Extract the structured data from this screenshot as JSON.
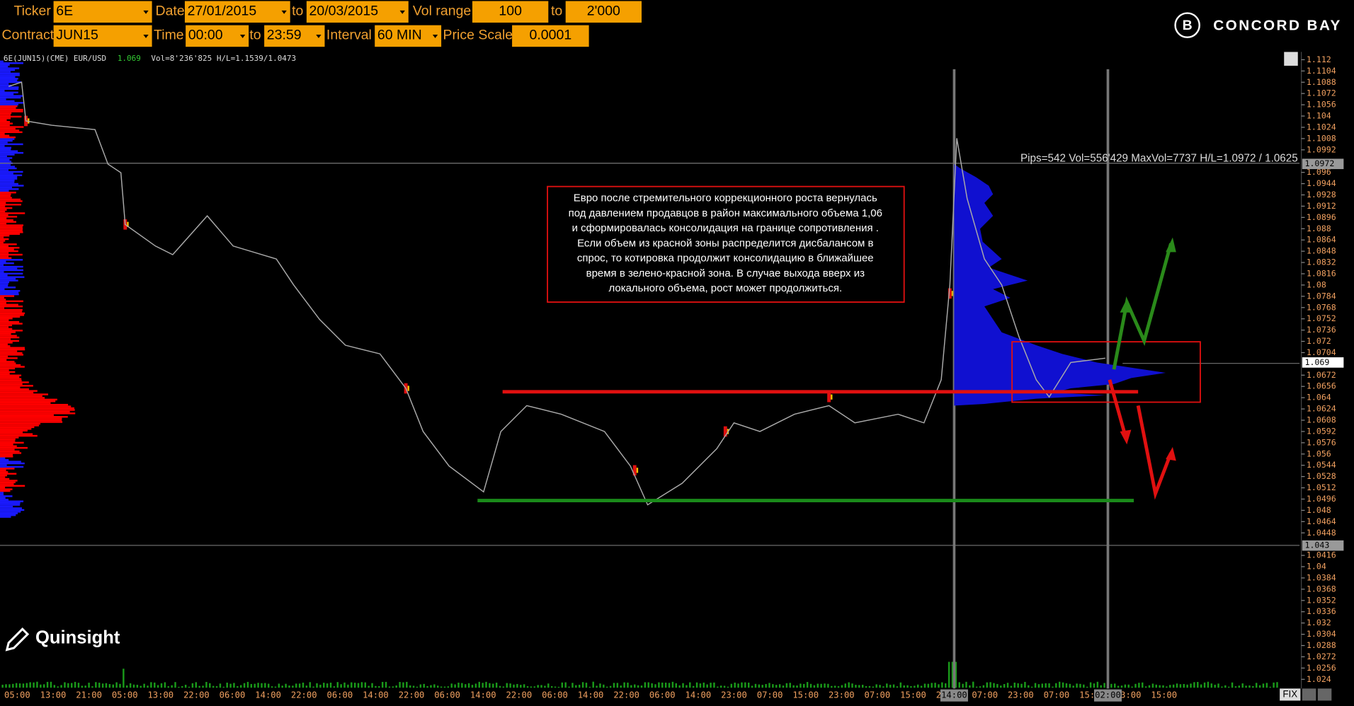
{
  "controls": [
    {
      "label": "Ticker",
      "value": "6E"
    },
    {
      "label": "Date",
      "value": "27/01/2015"
    },
    {
      "label": "to",
      "value": "20/03/2015"
    },
    {
      "label": "Vol range",
      "value": "100"
    },
    {
      "label": "to",
      "value": "2'000"
    },
    {
      "label": "Contract",
      "value": "JUN15"
    },
    {
      "label": "Time",
      "value": "00:00"
    },
    {
      "label": "to",
      "value": "23:59"
    },
    {
      "label": "Interval",
      "value": "60 MIN"
    },
    {
      "label": "Price Scale",
      "value": "0.0001"
    }
  ],
  "brand": "CONCORD BAY",
  "watermark": "Quinsight",
  "info": {
    "symbol": "6E(JUN15)(CME) EUR/USD",
    "last": "1.069",
    "stats": "Vol=8'236'825 H/L=1.1539/1.0473"
  },
  "profile_stats": "Pips=542 Vol=556'429 MaxVol=7737 H/L=1.0972 / 1.0625",
  "annotation": [
    "Евро после стремительного коррекционного роста вернулась",
    "под давлением продавцов в район максимального объема 1,06",
    "и сформировалась консолидация на границе сопротивления .",
    "Если объем из красной зоны распределится дисбалансом в",
    "спрос, то котировка продолжит консолидацию в ближайшее",
    "время в зелено-красной зона. В случае выхода вверх из",
    "локального объема, рост может продолжиться."
  ],
  "price_axis": {
    "ticks": [
      1.112,
      1.1104,
      1.1088,
      1.1072,
      1.1056,
      1.104,
      1.1024,
      1.1008,
      1.0992,
      1.096,
      1.0944,
      1.0928,
      1.0912,
      1.0896,
      1.088,
      1.0864,
      1.0848,
      1.0832,
      1.0816,
      1.08,
      1.0784,
      1.0768,
      1.0752,
      1.0736,
      1.072,
      1.0704,
      1.0672,
      1.0656,
      1.064,
      1.0624,
      1.0608,
      1.0592,
      1.0576,
      1.056,
      1.0544,
      1.0528,
      1.0512,
      1.0496,
      1.048,
      1.0464,
      1.0448,
      1.0416,
      1.04,
      1.0384,
      1.0368,
      1.0352,
      1.0336,
      1.032,
      1.0304,
      1.0288,
      1.0272,
      1.0256,
      1.024
    ],
    "markers": [
      1.0972,
      1.069,
      1.043
    ]
  },
  "time_axis": [
    "05:00",
    "13:00",
    "21:00",
    "05:00",
    "13:00",
    "22:00",
    "06:00",
    "14:00",
    "22:00",
    "06:00",
    "14:00",
    "22:00",
    "06:00",
    "14:00",
    "22:00",
    "06:00",
    "14:00",
    "22:00",
    "06:00",
    "14:00",
    "23:00",
    "07:00",
    "15:00",
    "23:00",
    "07:00",
    "15:00",
    "23:00",
    "07:00",
    "23:00",
    "07:00",
    "15:00",
    "23:00",
    "15:00"
  ],
  "cursor_times": [
    "14:00",
    "02:00"
  ],
  "fix": "FIX"
}
